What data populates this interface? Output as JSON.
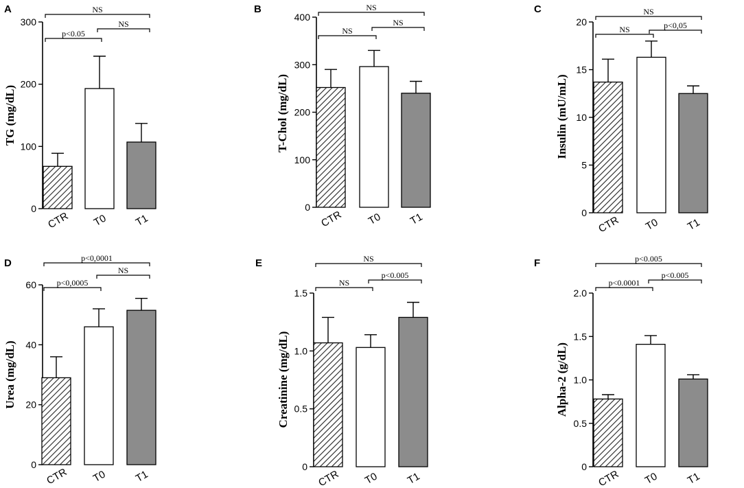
{
  "chart_data": [
    {
      "type": "bar",
      "panel": "A",
      "ylabel": "TG (mg/dL)",
      "ylim": [
        0,
        300
      ],
      "yticks": [
        "0",
        "100",
        "200",
        "300"
      ],
      "categories": [
        "CTR",
        "T0",
        "T1"
      ],
      "values": [
        68,
        193,
        107
      ],
      "errors": [
        21,
        52,
        30
      ],
      "styles": [
        "hatch",
        "white",
        "gray"
      ],
      "comparisons": [
        {
          "from": 0,
          "to": 2,
          "label": "NS"
        },
        {
          "from": 0,
          "to": 1,
          "label": "p<0.05"
        },
        {
          "from": 1,
          "to": 2,
          "label": "NS"
        }
      ]
    },
    {
      "type": "bar",
      "panel": "B",
      "ylabel": "T-Chol (mg/dL)",
      "ylim": [
        0,
        400
      ],
      "yticks": [
        "0",
        "100",
        "200",
        "300",
        "400"
      ],
      "categories": [
        "CTR",
        "T0",
        "T1"
      ],
      "values": [
        252,
        296,
        240
      ],
      "errors": [
        38,
        34,
        25
      ],
      "styles": [
        "hatch",
        "white",
        "gray"
      ],
      "comparisons": [
        {
          "from": 0,
          "to": 2,
          "label": "NS"
        },
        {
          "from": 0,
          "to": 1,
          "label": "NS"
        },
        {
          "from": 1,
          "to": 2,
          "label": "NS"
        }
      ]
    },
    {
      "type": "bar",
      "panel": "C",
      "ylabel": "Insulin (mU/mL)",
      "ylim": [
        0,
        20
      ],
      "yticks": [
        "0",
        "5",
        "10",
        "15",
        "20"
      ],
      "categories": [
        "CTR",
        "T0",
        "T1"
      ],
      "values": [
        13.7,
        16.3,
        12.5
      ],
      "errors": [
        2.4,
        1.7,
        0.8
      ],
      "styles": [
        "hatch",
        "white",
        "gray"
      ],
      "comparisons": [
        {
          "from": 0,
          "to": 2,
          "label": "NS"
        },
        {
          "from": 0,
          "to": 1,
          "label": "NS"
        },
        {
          "from": 1,
          "to": 2,
          "label": "p<0,05"
        }
      ]
    },
    {
      "type": "bar",
      "panel": "D",
      "ylabel": "Urea (mg/dL)",
      "ylim": [
        0,
        60
      ],
      "yticks": [
        "0",
        "20",
        "40",
        "60"
      ],
      "categories": [
        "CTR",
        "T0",
        "T1"
      ],
      "values": [
        29,
        46,
        51.5
      ],
      "errors": [
        7,
        6,
        4
      ],
      "styles": [
        "hatch",
        "white",
        "gray"
      ],
      "comparisons": [
        {
          "from": 0,
          "to": 2,
          "label": "p<0,0001"
        },
        {
          "from": 0,
          "to": 1,
          "label": "p<0,0005"
        },
        {
          "from": 1,
          "to": 2,
          "label": "NS"
        }
      ]
    },
    {
      "type": "bar",
      "panel": "E",
      "ylabel": "Creatinine (mg/dL)",
      "ylim": [
        0,
        1.5
      ],
      "yticks": [
        "0",
        "0.5",
        "1.0",
        "1.5"
      ],
      "categories": [
        "CTR",
        "T0",
        "T1"
      ],
      "values": [
        1.07,
        1.03,
        1.29
      ],
      "errors": [
        0.22,
        0.11,
        0.13
      ],
      "styles": [
        "hatch",
        "white",
        "gray"
      ],
      "comparisons": [
        {
          "from": 0,
          "to": 2,
          "label": "NS"
        },
        {
          "from": 0,
          "to": 1,
          "label": "NS"
        },
        {
          "from": 1,
          "to": 2,
          "label": "p<0.005"
        }
      ]
    },
    {
      "type": "bar",
      "panel": "F",
      "ylabel": "Alpha-2 (g/dL)",
      "ylim": [
        0,
        2.0
      ],
      "yticks": [
        "0",
        "0.5",
        "1.0",
        "1.5",
        "2.0"
      ],
      "categories": [
        "CTR",
        "T0",
        "T1"
      ],
      "values": [
        0.78,
        1.41,
        1.01
      ],
      "errors": [
        0.05,
        0.1,
        0.05
      ],
      "styles": [
        "hatch",
        "white",
        "gray"
      ],
      "comparisons": [
        {
          "from": 0,
          "to": 2,
          "label": "p<0.005"
        },
        {
          "from": 0,
          "to": 1,
          "label": "p<0.0001"
        },
        {
          "from": 1,
          "to": 2,
          "label": "p<0.005"
        }
      ]
    }
  ],
  "colors": {
    "gray_bar": "#8c8c8c",
    "white_bar": "#ffffff",
    "hatch_line": "#222222",
    "axis": "#000000"
  }
}
